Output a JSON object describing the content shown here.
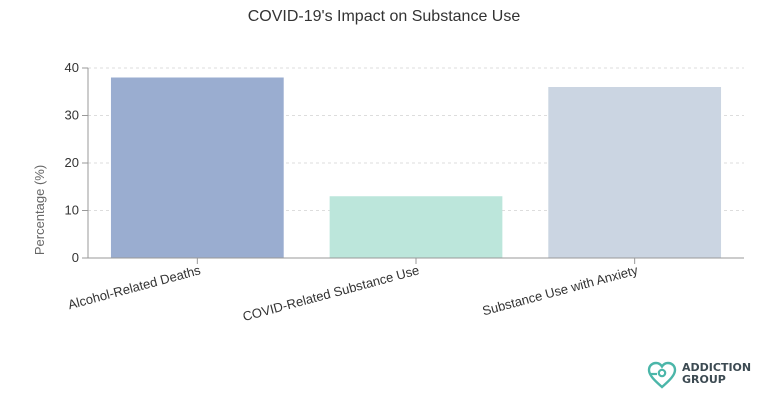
{
  "chart_data": {
    "type": "bar",
    "title": "COVID-19's Impact on Substance Use",
    "ylabel": "Percentage (%)",
    "xlabel": "",
    "categories": [
      "Alcohol-Related Deaths",
      "COVID-Related Substance Use",
      "Substance Use with Anxiety"
    ],
    "values": [
      38,
      13,
      36
    ],
    "ylim": [
      0,
      40
    ],
    "yticks": [
      0,
      10,
      20,
      30,
      40
    ],
    "grid": true,
    "colors": [
      "#9aadd0",
      "#bce6db",
      "#cbd5e2"
    ]
  },
  "logo": {
    "line1": "ADDICTION",
    "line2": "GROUP",
    "icon": "heart-pin-icon",
    "color": "#4bb6a9"
  }
}
